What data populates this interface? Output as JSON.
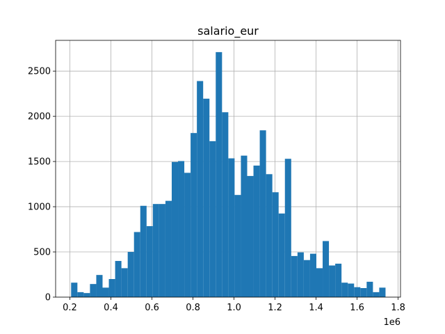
{
  "chart_data": {
    "type": "bar",
    "title": "salario_eur",
    "xlabel": "",
    "ylabel": "",
    "x_offset_label": "1e6",
    "bar_color": "#1f77b4",
    "grid": true,
    "grid_color": "#b0b0b0",
    "xlim": [
      0.1305,
      1.8115
    ],
    "ylim": [
      0,
      2840
    ],
    "bin_start": 0.206,
    "bin_width": 0.03065,
    "values": [
      160,
      55,
      45,
      145,
      245,
      105,
      200,
      400,
      320,
      500,
      720,
      1010,
      785,
      1030,
      1030,
      1065,
      1495,
      1505,
      1375,
      1815,
      2390,
      2195,
      1725,
      2710,
      2045,
      1535,
      1130,
      1565,
      1340,
      1455,
      1845,
      1360,
      1160,
      925,
      1530,
      455,
      495,
      410,
      480,
      320,
      620,
      350,
      370,
      160,
      150,
      110,
      100,
      170,
      55,
      105
    ],
    "x_ticks": [
      {
        "value": 0.2,
        "label": "0.2"
      },
      {
        "value": 0.4,
        "label": "0.4"
      },
      {
        "value": 0.6,
        "label": "0.6"
      },
      {
        "value": 0.8,
        "label": "0.8"
      },
      {
        "value": 1.0,
        "label": "1.0"
      },
      {
        "value": 1.2,
        "label": "1.2"
      },
      {
        "value": 1.4,
        "label": "1.4"
      },
      {
        "value": 1.6,
        "label": "1.6"
      },
      {
        "value": 1.8,
        "label": "1.8"
      }
    ],
    "y_ticks": [
      {
        "value": 0,
        "label": "0"
      },
      {
        "value": 500,
        "label": "500"
      },
      {
        "value": 1000,
        "label": "1000"
      },
      {
        "value": 1500,
        "label": "1500"
      },
      {
        "value": 2000,
        "label": "2000"
      },
      {
        "value": 2500,
        "label": "2500"
      }
    ]
  }
}
